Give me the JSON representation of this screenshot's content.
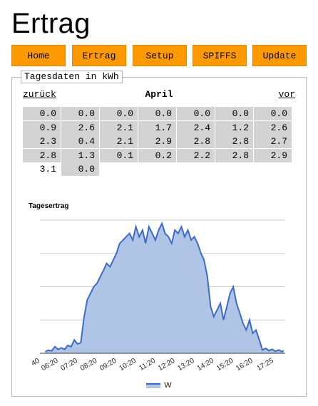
{
  "header": {
    "title": "Ertrag"
  },
  "nav": {
    "buttons": [
      {
        "label": "Home"
      },
      {
        "label": "Ertrag"
      },
      {
        "label": "Setup"
      },
      {
        "label": "SPIFFS"
      },
      {
        "label": "Update"
      }
    ],
    "button_color": "#ff9900"
  },
  "panel": {
    "legend": "Tagesdaten in kWh",
    "prev_label": "zurück",
    "month_label": "April",
    "next_label": "vor",
    "cell_color": "#d3d3d3",
    "daily_values": [
      "0.0",
      "0.0",
      "0.0",
      "0.0",
      "0.0",
      "0.0",
      "0.0",
      "0.9",
      "2.6",
      "2.1",
      "1.7",
      "2.4",
      "1.2",
      "2.6",
      "2.3",
      "0.4",
      "2.1",
      "2.9",
      "2.8",
      "2.8",
      "2.7",
      "2.8",
      "1.3",
      "0.1",
      "0.2",
      "2.2",
      "2.8",
      "2.9",
      "3.1",
      "0.0"
    ],
    "current_day_index": 28
  },
  "chart_data": {
    "type": "area",
    "title": "Tagesertrag",
    "xlabel": "",
    "ylabel": "",
    "grid": true,
    "legend_position": "bottom",
    "series": [
      {
        "name": "W",
        "color": "#3b6bc8",
        "fill": "#b0c4e6",
        "points": [
          [
            5.67,
            50
          ],
          [
            5.83,
            90
          ],
          [
            6.0,
            70
          ],
          [
            6.17,
            200
          ],
          [
            6.33,
            120
          ],
          [
            6.5,
            160
          ],
          [
            6.67,
            120
          ],
          [
            6.83,
            240
          ],
          [
            7.0,
            200
          ],
          [
            7.17,
            400
          ],
          [
            7.33,
            280
          ],
          [
            7.5,
            320
          ],
          [
            7.67,
            1100
          ],
          [
            7.83,
            1600
          ],
          [
            8.0,
            1800
          ],
          [
            8.17,
            2000
          ],
          [
            8.33,
            2100
          ],
          [
            8.5,
            2300
          ],
          [
            8.67,
            2500
          ],
          [
            8.83,
            2700
          ],
          [
            9.0,
            2600
          ],
          [
            9.17,
            2800
          ],
          [
            9.33,
            3000
          ],
          [
            9.5,
            3300
          ],
          [
            9.67,
            3400
          ],
          [
            9.83,
            3500
          ],
          [
            10.0,
            3600
          ],
          [
            10.17,
            3400
          ],
          [
            10.33,
            3800
          ],
          [
            10.5,
            3500
          ],
          [
            10.67,
            3700
          ],
          [
            10.83,
            3300
          ],
          [
            11.0,
            3800
          ],
          [
            11.17,
            3600
          ],
          [
            11.33,
            3400
          ],
          [
            11.5,
            3700
          ],
          [
            11.67,
            3900
          ],
          [
            11.83,
            3600
          ],
          [
            12.0,
            3500
          ],
          [
            12.17,
            3300
          ],
          [
            12.33,
            3700
          ],
          [
            12.5,
            3600
          ],
          [
            12.67,
            3800
          ],
          [
            12.83,
            3500
          ],
          [
            13.0,
            3700
          ],
          [
            13.17,
            3400
          ],
          [
            13.33,
            3500
          ],
          [
            13.5,
            3300
          ],
          [
            13.67,
            3000
          ],
          [
            13.83,
            2800
          ],
          [
            14.0,
            2300
          ],
          [
            14.17,
            1400
          ],
          [
            14.33,
            1100
          ],
          [
            14.5,
            1300
          ],
          [
            14.67,
            1500
          ],
          [
            14.83,
            1000
          ],
          [
            15.0,
            1400
          ],
          [
            15.17,
            1800
          ],
          [
            15.33,
            2000
          ],
          [
            15.5,
            1500
          ],
          [
            15.67,
            1200
          ],
          [
            15.83,
            900
          ],
          [
            16.0,
            700
          ],
          [
            16.17,
            1000
          ],
          [
            16.33,
            600
          ],
          [
            16.5,
            700
          ],
          [
            16.67,
            400
          ],
          [
            16.83,
            100
          ],
          [
            17.0,
            150
          ],
          [
            17.17,
            80
          ],
          [
            17.33,
            120
          ],
          [
            17.5,
            60
          ],
          [
            17.67,
            100
          ],
          [
            17.83,
            50
          ],
          [
            17.92,
            80
          ]
        ]
      }
    ],
    "x_tick_labels": [
      "40",
      "06:20",
      "07:20",
      "08:20",
      "09:20",
      "10:20",
      "11:20",
      "12:20",
      "13:20",
      "14:20",
      "15:20",
      "16:20",
      "17:25"
    ],
    "ylim": [
      0,
      4000
    ]
  }
}
